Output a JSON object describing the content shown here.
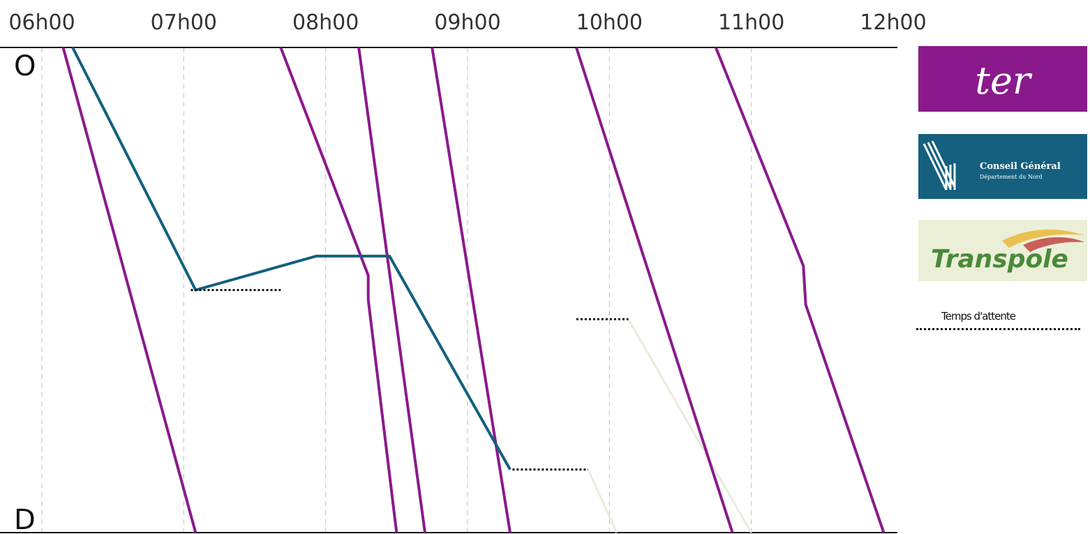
{
  "chart_data": {
    "type": "line",
    "x_ticks": [
      "06h00",
      "07h00",
      "08h00",
      "09h00",
      "10h00",
      "11h00",
      "12h00"
    ],
    "xlim": [
      "06:00",
      "12:00"
    ],
    "y_ends": {
      "origin": "O",
      "destination": "D"
    },
    "grid": {
      "vertical": true,
      "style": "dashed"
    },
    "colors": {
      "ter": "#8a1a8c",
      "conseil_general": "#14607e",
      "transpole": "#ebebdd",
      "waiting": "#111111"
    },
    "legend": {
      "label": "Temps d'attente",
      "placement": "right"
    },
    "series": [
      {
        "color_key": "ter",
        "points": [
          [
            "06:09",
            1.0
          ],
          [
            "07:05",
            0.0
          ]
        ]
      },
      {
        "color_key": "ter",
        "points": [
          [
            "07:41",
            1.0
          ],
          [
            "08:18",
            0.53
          ],
          [
            "08:18",
            0.48
          ],
          [
            "08:30",
            0.0
          ]
        ]
      },
      {
        "color_key": "ter",
        "points": [
          [
            "08:14",
            1.0
          ],
          [
            "08:42",
            0.0
          ]
        ]
      },
      {
        "color_key": "ter",
        "points": [
          [
            "08:45",
            1.0
          ],
          [
            "09:18",
            0.0
          ]
        ]
      },
      {
        "color_key": "ter",
        "points": [
          [
            "09:46",
            1.0
          ],
          [
            "10:52",
            0.0
          ]
        ]
      },
      {
        "color_key": "ter",
        "points": [
          [
            "10:45",
            1.0
          ],
          [
            "11:22",
            0.55
          ],
          [
            "11:23",
            0.47
          ],
          [
            "11:56",
            0.0
          ]
        ]
      },
      {
        "color_key": "conseil_general",
        "points": [
          [
            "06:13",
            1.0
          ],
          [
            "07:05",
            0.5
          ],
          [
            "07:56",
            0.57
          ],
          [
            "08:27",
            0.57
          ],
          [
            "09:18",
            0.13
          ]
        ]
      },
      {
        "color_key": "transpole",
        "points": [
          [
            "10:08",
            0.44
          ],
          [
            "11:00",
            0.0
          ]
        ]
      },
      {
        "color_key": "transpole",
        "points": [
          [
            "09:51",
            0.13
          ],
          [
            "10:03",
            0.0
          ]
        ]
      }
    ],
    "waits": [
      {
        "from": "07:03",
        "to": "07:41",
        "y": 0.5
      },
      {
        "from": "09:46",
        "to": "10:08",
        "y": 0.44
      },
      {
        "from": "09:19",
        "to": "09:51",
        "y": 0.13
      }
    ]
  },
  "logos": {
    "ter": {
      "text": "ter",
      "bg": "#8a1a8c",
      "fg": "#ffffff"
    },
    "conseil_general": {
      "text": "Conseil Général",
      "subtext": "Département du Nord",
      "bg": "#14607e",
      "fg": "#ffffff"
    },
    "transpole": {
      "text": "Transpole",
      "bg": "#ecefd8",
      "fg": "#4a8a3a"
    }
  }
}
